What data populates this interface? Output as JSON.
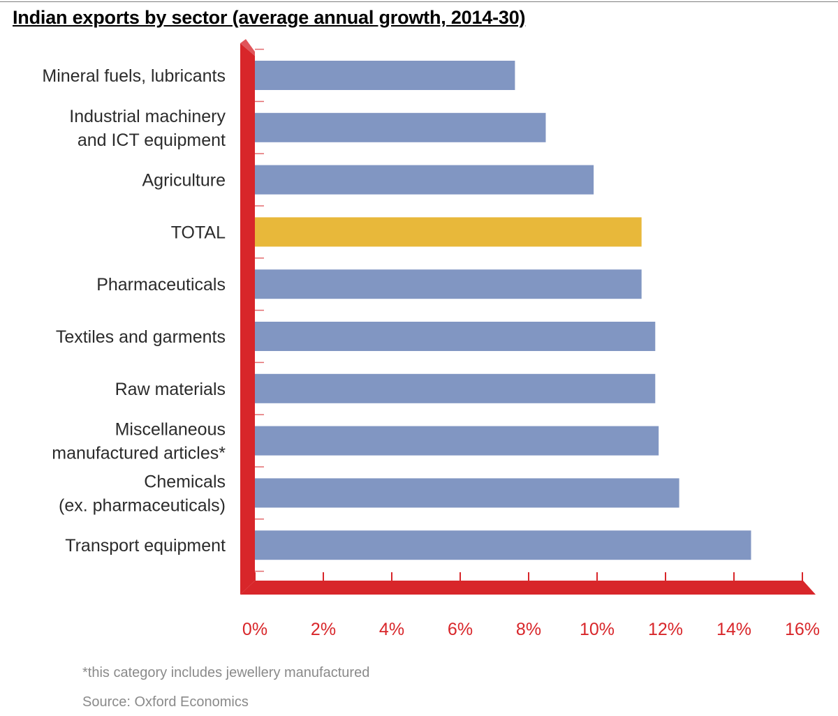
{
  "chart_data": {
    "type": "bar",
    "orientation": "horizontal",
    "title": "Indian exports by sector (average annual growth, 2014-30)",
    "categories": [
      "Mineral fuels, lubricants",
      "Industrial machinery and ICT equipment",
      "Agriculture",
      "TOTAL",
      "Pharmaceuticals",
      "Textiles and garments",
      "Raw materials",
      "Miscellaneous manufactured articles*",
      "Chemicals (ex. pharmaceuticals)",
      "Transport equipment"
    ],
    "category_lines": [
      [
        "Mineral fuels, lubricants"
      ],
      [
        "Industrial machinery ",
        "and ICT equipment"
      ],
      [
        "Agriculture"
      ],
      [
        "TOTAL"
      ],
      [
        "Pharmaceuticals"
      ],
      [
        "Textiles and garments"
      ],
      [
        "Raw materials"
      ],
      [
        "Miscellaneous",
        "manufactured articles*"
      ],
      [
        "Chemicals",
        "(ex. pharmaceuticals)"
      ],
      [
        "Transport equipment"
      ]
    ],
    "values": [
      7.6,
      8.5,
      9.9,
      11.3,
      11.3,
      11.7,
      11.7,
      11.8,
      12.4,
      14.5
    ],
    "highlight_category": "TOTAL",
    "xlim": [
      0,
      16
    ],
    "xticks": [
      0,
      2,
      4,
      6,
      8,
      10,
      12,
      14,
      16
    ],
    "xtick_labels": [
      "0%",
      "2%",
      "4%",
      "6%",
      "8%",
      "10%",
      "12%",
      "14%",
      "16%"
    ],
    "xlabel": "",
    "ylabel": "",
    "grid": false,
    "legend": "none",
    "colors": {
      "bar": "#8196c2",
      "highlight": "#e8b83a",
      "axis": "#d8262a",
      "axis_text": "#d8262a",
      "label_text": "#2b2b2b",
      "footnote_text": "#8a8a8a"
    }
  },
  "footnotes": {
    "note": "*this category includes jewellery manufactured",
    "source": "Source: Oxford Economics"
  }
}
